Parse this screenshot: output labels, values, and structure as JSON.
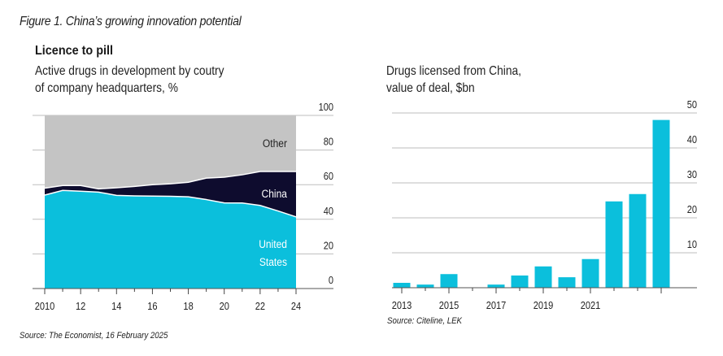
{
  "figure_title": "Figure 1. China’s growing innovation potential",
  "chart_data": [
    {
      "type": "area",
      "title": "Licence to pill",
      "subtitle_lines": [
        "Active drugs in development by coutry",
        "of company headquarters, %"
      ],
      "stacked": true,
      "x": [
        2010,
        2011,
        2012,
        2013,
        2014,
        2015,
        2016,
        2017,
        2018,
        2019,
        2020,
        2021,
        2022,
        2023,
        2024
      ],
      "x_tick_labels": [
        "2010",
        "12",
        "14",
        "16",
        "18",
        "20",
        "22",
        "24"
      ],
      "x_tick_values": [
        2010,
        2012,
        2014,
        2016,
        2018,
        2020,
        2022,
        2024
      ],
      "y_tick_labels": [
        "0",
        "20",
        "40",
        "60",
        "80",
        "100"
      ],
      "ylim": [
        0,
        100
      ],
      "grid": true,
      "series": [
        {
          "name": "United States",
          "label_lines": [
            "United",
            "States"
          ],
          "color": "#0bbfdc",
          "values": [
            54,
            56.7,
            56.2,
            55.7,
            53.8,
            53.5,
            53.4,
            53.3,
            53.0,
            51.4,
            49.5,
            49.4,
            48,
            44.8,
            41.4
          ]
        },
        {
          "name": "China",
          "label_lines": [
            "China"
          ],
          "color": "#0e0c2e",
          "values": [
            4,
            2.8,
            3.3,
            1.9,
            4.4,
            5.5,
            6.6,
            7.2,
            8.4,
            12.4,
            14.8,
            16.3,
            19.6,
            22.8,
            26.2
          ]
        },
        {
          "name": "Other",
          "label_lines": [
            "Other"
          ],
          "color": "#c4c4c4",
          "values": [
            42,
            40.5,
            40.5,
            42.4,
            41.8,
            41.0,
            40.0,
            39.5,
            38.6,
            36.2,
            35.7,
            34.3,
            32.4,
            32.4,
            32.4
          ]
        }
      ],
      "source": "Source: The Economist, 16 February 2025"
    },
    {
      "type": "bar",
      "title": "",
      "subtitle_lines": [
        "Drugs licensed from China,",
        "value of deal, $bn"
      ],
      "categories": [
        "2013",
        "2014",
        "2015",
        "2016",
        "2017",
        "2018",
        "2019",
        "2020",
        "2021",
        "2022",
        "2023",
        "2024"
      ],
      "values": [
        1.4,
        0.9,
        3.9,
        0,
        0.9,
        3.5,
        6.1,
        3.0,
        8.2,
        24.7,
        26.8,
        48
      ],
      "x_tick_labels": [
        "2013",
        "2015",
        "2017",
        "2019",
        "2021"
      ],
      "y_tick_labels": [
        "10",
        "20",
        "30",
        "40",
        "50"
      ],
      "ylim": [
        0,
        50
      ],
      "grid": true,
      "color": "#0bbfdc",
      "source": "Source: Citeline, LEK"
    }
  ]
}
